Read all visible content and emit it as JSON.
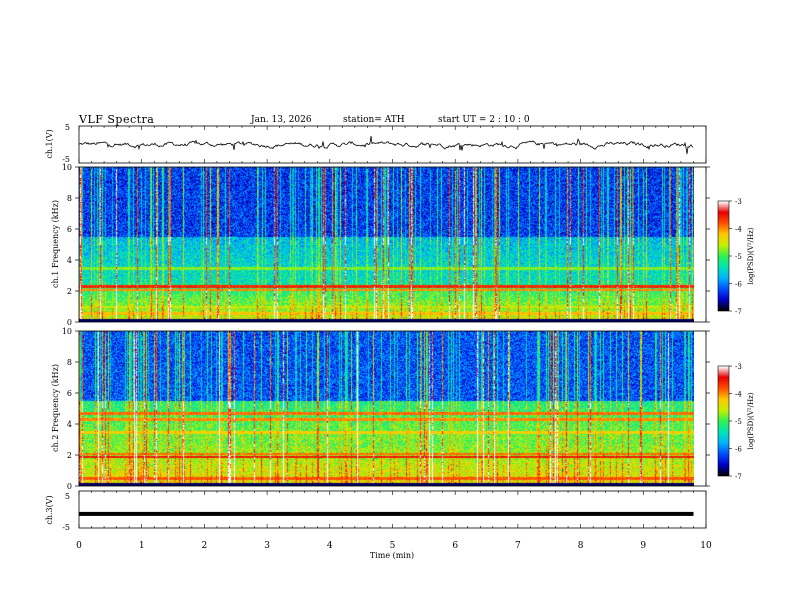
{
  "header": {
    "title": "VLF  Spectra",
    "date": "Jan. 13, 2026",
    "station": "station= ATH",
    "start_ut": "start  UT  =   2  : 10 : 0"
  },
  "chart_data": [
    {
      "type": "line",
      "name": "ch1-waveform",
      "ylabel": "ch.1(V)",
      "ylim": [
        -5,
        5
      ],
      "yticks": [
        "5",
        "-5"
      ],
      "xlim": [
        0,
        10
      ],
      "x_data_extent_min": [
        0,
        9.8
      ],
      "description_level_v": 0
    },
    {
      "type": "heatmap",
      "name": "ch1-spectrogram",
      "ylabel": "ch.1 Frequency  (kHz)",
      "ylim": [
        0,
        10
      ],
      "yticks": [
        "0",
        "2",
        "4",
        "6",
        "8",
        "10"
      ],
      "xlim": [
        0,
        10
      ],
      "x_data_extent_min": [
        0,
        9.8
      ],
      "colorbar": {
        "label": "log(PSD)(V²/Hz)",
        "range": [
          -7,
          -3
        ],
        "ticks": [
          "-3",
          "-4",
          "-5",
          "-6",
          "-7"
        ]
      },
      "bands_khz": [
        {
          "f": 0.6,
          "level": -4.2
        },
        {
          "f": 1.0,
          "level": -4.6
        },
        {
          "f": 2.1,
          "level": -4.0
        },
        {
          "f": 2.3,
          "level": -3.6
        },
        {
          "f": 3.5,
          "level": -4.8
        },
        {
          "f": 4.5,
          "level": -6.3
        },
        {
          "f": 5.0,
          "level": -6.5
        }
      ]
    },
    {
      "type": "heatmap",
      "name": "ch2-spectrogram",
      "ylabel": "ch.2 Frequency  (kHz)",
      "ylim": [
        0,
        10
      ],
      "yticks": [
        "0",
        "2",
        "4",
        "6",
        "8",
        "10"
      ],
      "xlim": [
        0,
        10
      ],
      "x_data_extent_min": [
        0,
        9.8
      ],
      "colorbar": {
        "label": "log(PSD)(V²/Hz)",
        "range": [
          -7,
          -3
        ],
        "ticks": [
          "-3",
          "-4",
          "-5",
          "-6",
          "-7"
        ]
      },
      "bands_khz": [
        {
          "f": 0.5,
          "level": -3.8
        },
        {
          "f": 1.9,
          "level": -3.5
        },
        {
          "f": 2.1,
          "level": -3.9
        },
        {
          "f": 3.5,
          "level": -4.3
        },
        {
          "f": 4.3,
          "level": -4.0
        },
        {
          "f": 4.7,
          "level": -3.9
        }
      ]
    },
    {
      "type": "line",
      "name": "ch3-waveform",
      "ylabel": "ch.3(V)",
      "ylim": [
        -5,
        5
      ],
      "yticks": [
        "5",
        "-5"
      ],
      "xlim": [
        0,
        10
      ],
      "x_data_extent_min": [
        0,
        9.8
      ],
      "level_v": -1.2
    }
  ],
  "xaxis": {
    "label": "Time  (min)",
    "ticks": [
      "0",
      "1",
      "2",
      "3",
      "4",
      "5",
      "6",
      "7",
      "8",
      "9",
      "10"
    ]
  },
  "colors": {
    "colormap": [
      "#000000",
      "#0000c8",
      "#0050ff",
      "#00b4ff",
      "#00e6b4",
      "#32f050",
      "#c8f000",
      "#ffc800",
      "#ff5000",
      "#e60000",
      "#ffffff"
    ]
  }
}
